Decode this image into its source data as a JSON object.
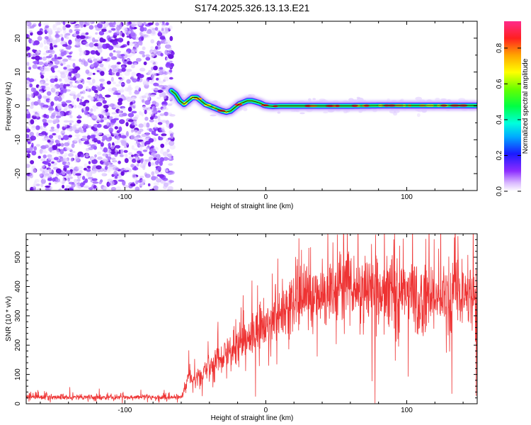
{
  "title": "S174.2025.326.13.13.E21",
  "chart_data": [
    {
      "type": "heatmap",
      "xlabel": "Height of straight line (km)",
      "ylabel": "Frequency (Hz)",
      "xlim": [
        -170,
        150
      ],
      "ylim": [
        -25,
        25
      ],
      "x_ticks": [
        -100,
        0,
        100
      ],
      "y_ticks": [
        -20,
        -10,
        0,
        10,
        20
      ],
      "noise_region_x": [
        -170,
        -67
      ],
      "ridge": {
        "x": [
          -67,
          -64,
          -61,
          -58,
          -55,
          -52,
          -49,
          -46,
          -43,
          -40,
          -37,
          -34,
          -31,
          -28,
          -25,
          -22,
          -19,
          -16,
          -13,
          -10,
          -7,
          -4,
          -1,
          2,
          5,
          10,
          20,
          40,
          60,
          80,
          100,
          120,
          148
        ],
        "freq": [
          4.5,
          3.5,
          1.5,
          0.5,
          1.5,
          2.5,
          2.5,
          1.5,
          0.5,
          0.0,
          -0.5,
          -1.0,
          -1.5,
          -1.8,
          -1.5,
          -0.5,
          0.5,
          1.0,
          1.5,
          1.5,
          1.2,
          0.8,
          0.2,
          0.0,
          -0.1,
          0.0,
          0.0,
          0.0,
          0.0,
          0.1,
          0.1,
          0.1,
          0.1
        ]
      },
      "colorbar": {
        "label": "Normalized spectral amplitude",
        "range": [
          0.0,
          0.95
        ],
        "ticks": [
          0.0,
          0.2,
          0.4,
          0.6,
          0.8
        ],
        "tick_labels": [
          "0.0",
          "0.2",
          "0.4",
          "0.6",
          "0.8"
        ]
      }
    },
    {
      "type": "line",
      "xlabel": "Height of straight line (km)",
      "ylabel": "SNR (10 * v/v)",
      "xlim": [
        -170,
        150
      ],
      "ylim": [
        0,
        580
      ],
      "x_ticks": [
        -100,
        0,
        100
      ],
      "y_ticks": [
        0,
        100,
        200,
        300,
        400,
        500
      ],
      "color": "#ee3333",
      "envelope": {
        "x": [
          -170,
          -60,
          -55,
          -50,
          -40,
          -30,
          -20,
          -10,
          0,
          10,
          20,
          30,
          40,
          60,
          80,
          100,
          120,
          140,
          150
        ],
        "mean": [
          22,
          22,
          90,
          75,
          130,
          160,
          195,
          240,
          280,
          320,
          345,
          370,
          385,
          390,
          375,
          375,
          360,
          370,
          365
        ],
        "noise": [
          8,
          8,
          35,
          30,
          45,
          55,
          65,
          75,
          80,
          85,
          90,
          95,
          100,
          105,
          110,
          115,
          120,
          110,
          110
        ]
      }
    }
  ]
}
